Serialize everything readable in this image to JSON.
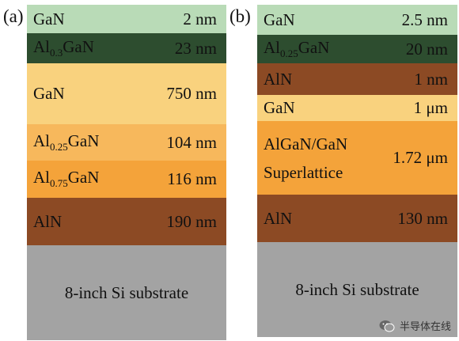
{
  "panels": [
    {
      "label": "(a)",
      "layers": [
        {
          "name": "GaN",
          "thickness": "2 nm",
          "color": "#b9dbb7",
          "height": 36
        },
        {
          "name": "Al0.3GaN",
          "thickness": "23 nm",
          "color": "#2d4d2f",
          "height": 38
        },
        {
          "name": "GaN",
          "thickness": "750 nm",
          "color": "#f9d27e",
          "height": 77
        },
        {
          "name": "Al0.25GaN",
          "thickness": "104 nm",
          "color": "#f7b85c",
          "height": 46
        },
        {
          "name": "Al0.75GaN",
          "thickness": "116 nm",
          "color": "#f4a33a",
          "height": 47
        },
        {
          "name": "AlN",
          "thickness": "190 nm",
          "color": "#8c4a24",
          "height": 60
        },
        {
          "name": "8-inch Si substrate",
          "thickness": "",
          "color": "#a3a3a3",
          "height": 120
        }
      ]
    },
    {
      "label": "(b)",
      "layers": [
        {
          "name": "GaN",
          "thickness": "2.5 nm",
          "color": "#b9dbb7",
          "height": 38
        },
        {
          "name": "Al0.25GaN",
          "thickness": "20 nm",
          "color": "#2d4d2f",
          "height": 36
        },
        {
          "name": "AlN",
          "thickness": "1 nm",
          "color": "#8c4a24",
          "height": 40
        },
        {
          "name": "GaN",
          "thickness": "1 μm",
          "color": "#f9d27e",
          "height": 33
        },
        {
          "name": "AlGaN/GaN\nSuperlattice",
          "thickness": "1.72 μm",
          "color": "#f4a33a",
          "height": 93
        },
        {
          "name": "AlN",
          "thickness": "130 nm",
          "color": "#8c4a24",
          "height": 60
        },
        {
          "name": "8-inch Si substrate",
          "thickness": "",
          "color": "#a3a3a3",
          "height": 120
        }
      ]
    }
  ],
  "watermark": {
    "text": "半导体在线",
    "icon": "wechat-icon"
  }
}
